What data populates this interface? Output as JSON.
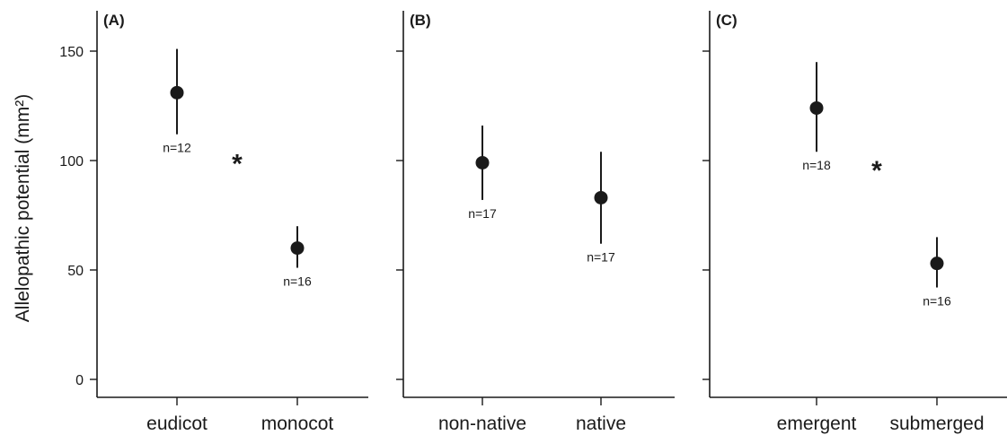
{
  "chart_data": {
    "type": "scatter",
    "ylabel": "Allelopathic potential (mm²)",
    "ylim": [
      -5,
      165
    ],
    "yticks": [
      0,
      50,
      100,
      150
    ],
    "grid": false,
    "color": "#1a1a1a",
    "panels": [
      {
        "label": "(A)",
        "categories": [
          "eudicot",
          "monocot"
        ],
        "points": [
          {
            "category": "eudicot",
            "mean": 131,
            "lower": 112,
            "upper": 151,
            "n_label": "n=12"
          },
          {
            "category": "monocot",
            "mean": 60,
            "lower": 51,
            "upper": 70,
            "n_label": "n=16"
          }
        ],
        "significance": {
          "symbol": "*",
          "y": 101
        }
      },
      {
        "label": "(B)",
        "categories": [
          "non-native",
          "native"
        ],
        "points": [
          {
            "category": "non-native",
            "mean": 99,
            "lower": 82,
            "upper": 116,
            "n_label": "n=17"
          },
          {
            "category": "native",
            "mean": 83,
            "lower": 62,
            "upper": 104,
            "n_label": "n=17"
          }
        ],
        "significance": null
      },
      {
        "label": "(C)",
        "categories": [
          "emergent",
          "submerged"
        ],
        "points": [
          {
            "category": "emergent",
            "mean": 124,
            "lower": 104,
            "upper": 145,
            "n_label": "n=18"
          },
          {
            "category": "submerged",
            "mean": 53,
            "lower": 42,
            "upper": 65,
            "n_label": "n=16"
          }
        ],
        "significance": {
          "symbol": "*",
          "y": 98
        }
      }
    ]
  }
}
